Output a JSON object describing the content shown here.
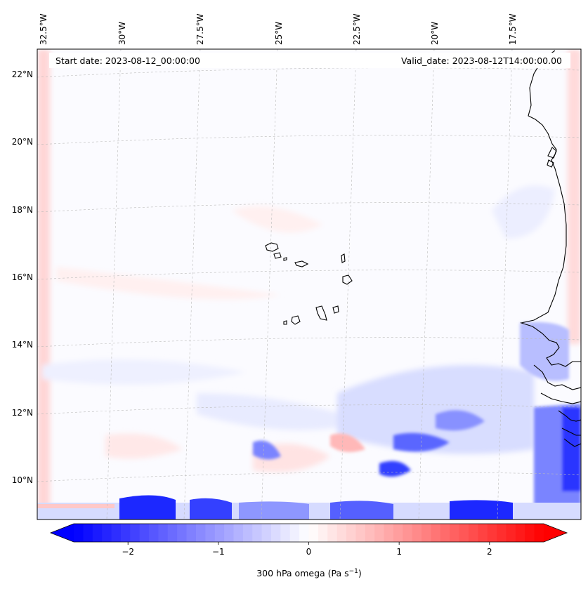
{
  "header": {
    "start_date": "Start date: 2023-08-12_00:00:00",
    "valid_date": "Valid_date: 2023-08-12T14:00:00.00"
  },
  "map": {
    "projection": "lambert-conformal",
    "lon_ticks": [
      "32.5°W",
      "30°W",
      "27.5°W",
      "25°W",
      "22.5°W",
      "20°W",
      "17.5°W"
    ],
    "lat_ticks": [
      "22°N",
      "20°N",
      "18°N",
      "16°N",
      "14°N",
      "12°N",
      "10°N"
    ],
    "features": [
      "coastline-west-africa",
      "cape-verde-islands"
    ]
  },
  "colorbar": {
    "label_main": "300 hPa omega (Pa s",
    "label_sup": "−1",
    "label_end": ")",
    "ticks": [
      "−2",
      "−1",
      "0",
      "1",
      "2"
    ],
    "tick_values": [
      -2,
      -1,
      0,
      1,
      2
    ],
    "range": [
      -2.6,
      2.6
    ],
    "extend": "both",
    "cmap": "bwr",
    "colors": {
      "min": "#0000ff",
      "mid": "#ffffff",
      "max": "#ff0000"
    }
  }
}
